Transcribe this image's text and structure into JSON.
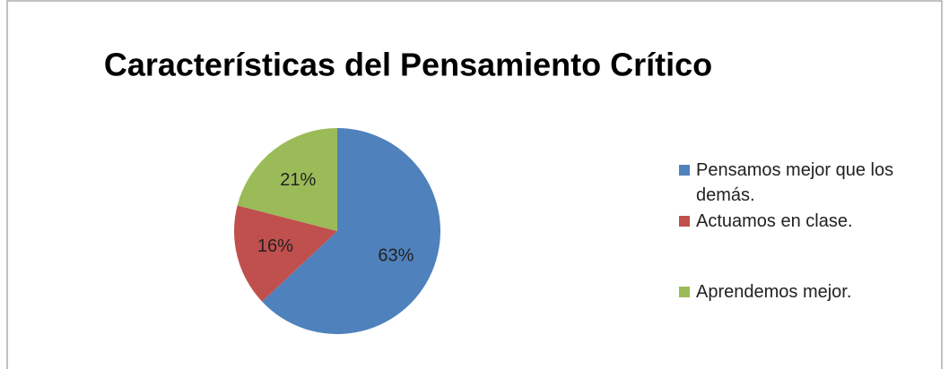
{
  "chart_data": {
    "type": "pie",
    "title": "Características del Pensamiento Crítico",
    "categories": [
      "Pensamos mejor que los demás.",
      "Actuamos en clase.",
      "Aprendemos mejor."
    ],
    "values": [
      63,
      16,
      21
    ],
    "value_labels": [
      "63%",
      "16%",
      "21%"
    ],
    "colors": [
      "#4f81bd",
      "#c0504d",
      "#9bbb59"
    ],
    "legend": "right"
  }
}
